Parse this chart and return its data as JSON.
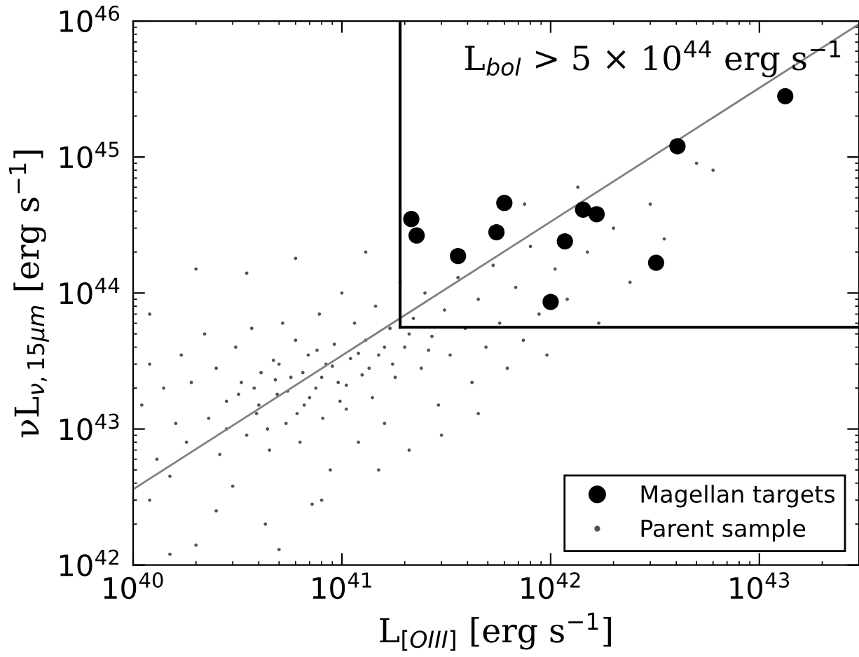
{
  "chart_data": {
    "type": "scatter",
    "xlabel": "L$_{[OIII]}$ [erg s$^{−1}$]",
    "ylabel": "νL$_{ν,15μm}$ [erg s$^{−1}$]",
    "log": "xy",
    "legend": "bottom right",
    "grid": false,
    "xlim": [
      1e+40,
      3e+43
    ],
    "ylim": [
      1e+42,
      1e+46
    ],
    "xticks": [
      {
        "value": 1e+40,
        "label": "10$^{40}$"
      },
      {
        "value": 1e+41,
        "label": "10$^{41}$"
      },
      {
        "value": 1e+42,
        "label": "10$^{42}$"
      },
      {
        "value": 1e+43,
        "label": "10$^{43}$"
      }
    ],
    "yticks": [
      {
        "value": 1e+42,
        "label": "10$^{42}$"
      },
      {
        "value": 1e+43,
        "label": "10$^{43}$"
      },
      {
        "value": 1e+44,
        "label": "10$^{44}$"
      },
      {
        "value": 1e+45,
        "label": "10$^{45}$"
      },
      {
        "value": 1e+46,
        "label": "10$^{46}$"
      }
    ],
    "annotations": [
      "L$_{bol}$ > 5 × 10$^{44}$ erg s$^{−1}$"
    ],
    "ref_lines": [
      {
        "axis": "x",
        "value": 1.9e+41,
        "color": "#000000"
      },
      {
        "axis": "y",
        "value": 5.6e+43,
        "color": "#000000"
      }
    ],
    "series": [
      {
        "type": "line",
        "color": "#808080",
        "x": [
          1e+40,
          3e+43
        ],
        "values": [
          3.6e+42,
          9.5e+45
        ]
      },
      {
        "name": "Parent sample",
        "marker": "circle",
        "color": "#555555",
        "x": [
          1.1e+40,
          1.2e+40,
          1.3e+40,
          1.4e+40,
          1.5e+40,
          1.6e+40,
          1.7e+40,
          1.8e+40,
          1.9e+40,
          2e+40,
          2.2e+40,
          2.3e+40,
          2.5e+40,
          2.6e+40,
          2.8e+40,
          3e+40,
          3.1e+40,
          3.3e+40,
          3.5e+40,
          3.7e+40,
          3.9e+40,
          4.1e+40,
          4.3e+40,
          4.5e+40,
          4.7e+40,
          4.9e+40,
          5.2e+40,
          5.4e+40,
          5.7e+40,
          6e+40,
          6.3e+40,
          6.6e+40,
          6.9e+40,
          7.2e+40,
          7.5e+40,
          7.8e+40,
          8.1e+40,
          8.4e+40,
          8.8e+40,
          9.2e+40,
          9.6e+40,
          1e+41,
          1.05e+41,
          1.1e+41,
          1.15e+41,
          1.2e+41,
          1.25e+41,
          1.3e+41,
          1.4e+41,
          1.45e+41,
          1.5e+41,
          1.6e+41,
          1.7e+41,
          1.8e+41,
          1.9e+41,
          2e+41,
          2.1e+41,
          2.2e+41,
          2.4e+41,
          2.5e+41,
          2.7e+41,
          2.9e+41,
          3.1e+41,
          3.3e+41,
          3.6e+41,
          3.9e+41,
          4.2e+41,
          4.5e+41,
          4.9e+41,
          5.3e+41,
          5.7e+41,
          6.2e+41,
          6.8e+41,
          7.4e+41,
          8e+41,
          8.8e+41,
          9.6e+41,
          1.05e+42,
          1.2e+42,
          1.35e+42,
          1.5e+42,
          1.7e+42,
          2e+42,
          2.4e+42,
          3e+42,
          3.5e+42,
          5e+42,
          6e+42,
          7.5e+41,
          1.2e+40,
          2.5e+40,
          1.5e+40,
          5e+40,
          8e+40,
          1.5e+41,
          3e+41,
          4.5e+41,
          2e+40,
          3.5e+40,
          6e+40,
          1.3e+41,
          1.2e+40,
          3.2e+40,
          4e+40,
          4.8e+40,
          5.5e+40,
          6.5e+40,
          7e+40,
          8e+40,
          9e+40,
          1.05e+41,
          1.2e+41,
          1.35e+41,
          1.6e+41,
          1.75e+41,
          2.1e+41,
          2.6e+41,
          2.8e+40,
          3.8e+40,
          4.4e+40,
          5e+40,
          6.1e+40,
          7.6e+40,
          9.8e+40
        ],
        "values": [
          1.5e+43,
          3e+43,
          6e+42,
          2e+43,
          4.5e+42,
          1.1e+43,
          3.5e+43,
          8e+42,
          2.2e+43,
          1.4e+42,
          5e+43,
          1.2e+43,
          2.8e+43,
          6.5e+42,
          1.6e+43,
          3.8e+42,
          4e+43,
          2.2e+43,
          9e+42,
          5.5e+43,
          1.3e+43,
          2.6e+43,
          2e+42,
          7e+42,
          3.2e+43,
          1.8e+43,
          6e+43,
          1.1e+43,
          2.4e+43,
          4.5e+43,
          8e+42,
          1.5e+43,
          3.5e+43,
          2.8e+42,
          2e+43,
          7e+43,
          1.2e+43,
          3e+43,
          5e+42,
          4.2e+43,
          2.2e+43,
          1e+44,
          1.4e+43,
          3.3e+43,
          6e+43,
          8e+42,
          2.5e+43,
          4.5e+43,
          1.7e+43,
          8e+43,
          3.5e+43,
          1.1e+43,
          5.5e+43,
          2.4e+43,
          1.2e+44,
          4e+43,
          7e+42,
          6.5e+43,
          2.8e+43,
          1e+44,
          4.8e+43,
          1.5e+43,
          7.5e+43,
          3.5e+43,
          1.3e+44,
          5.5e+43,
          2.2e+43,
          9e+43,
          4e+43,
          1.6e+44,
          6e+43,
          2.8e+43,
          1.1e+44,
          4.5e+43,
          2.2e+44,
          7e+43,
          3.5e+43,
          1.5e+44,
          9e+43,
          6e+44,
          2e+44,
          6e+43,
          3e+44,
          1.2e+44,
          4.5e+44,
          2.5e+44,
          9e+44,
          8e+44,
          4.5e+44,
          3e+42,
          2.5e+42,
          1.2e+42,
          1.3e+42,
          3e+42,
          5e+42,
          9e+42,
          1.3e+43,
          1.5e+44,
          1.4e+44,
          1.8e+44,
          2e+44,
          7e+43,
          1.8e+43,
          1.5e+43,
          2.3e+43,
          1.9e+43,
          2.6e+43,
          1.7e+43,
          2.4e+43,
          2.9e+43,
          2.1e+43,
          3.6e+43,
          2.8e+43,
          4e+43,
          3e+43,
          5e+43,
          3.8e+43,
          1e+43,
          2e+43,
          1e+43,
          3e+43,
          1.3e+43,
          3.8e+43,
          1.6e+43
        ]
      },
      {
        "name": "Magellan targets",
        "marker": "circle",
        "color": "#000000",
        "x": [
          2.15e+41,
          2.28e+41,
          3.6e+41,
          5.5e+41,
          6e+41,
          1e+42,
          1.17e+42,
          1.43e+42,
          1.66e+42,
          3.2e+42,
          4.05e+42,
          1.33e+43
        ],
        "values": [
          3.5e+44,
          2.65e+44,
          1.87e+44,
          2.8e+44,
          4.6e+44,
          8.6e+43,
          2.4e+44,
          4.1e+44,
          3.8e+44,
          1.67e+44,
          1.2e+45,
          2.8e+45
        ]
      }
    ]
  }
}
